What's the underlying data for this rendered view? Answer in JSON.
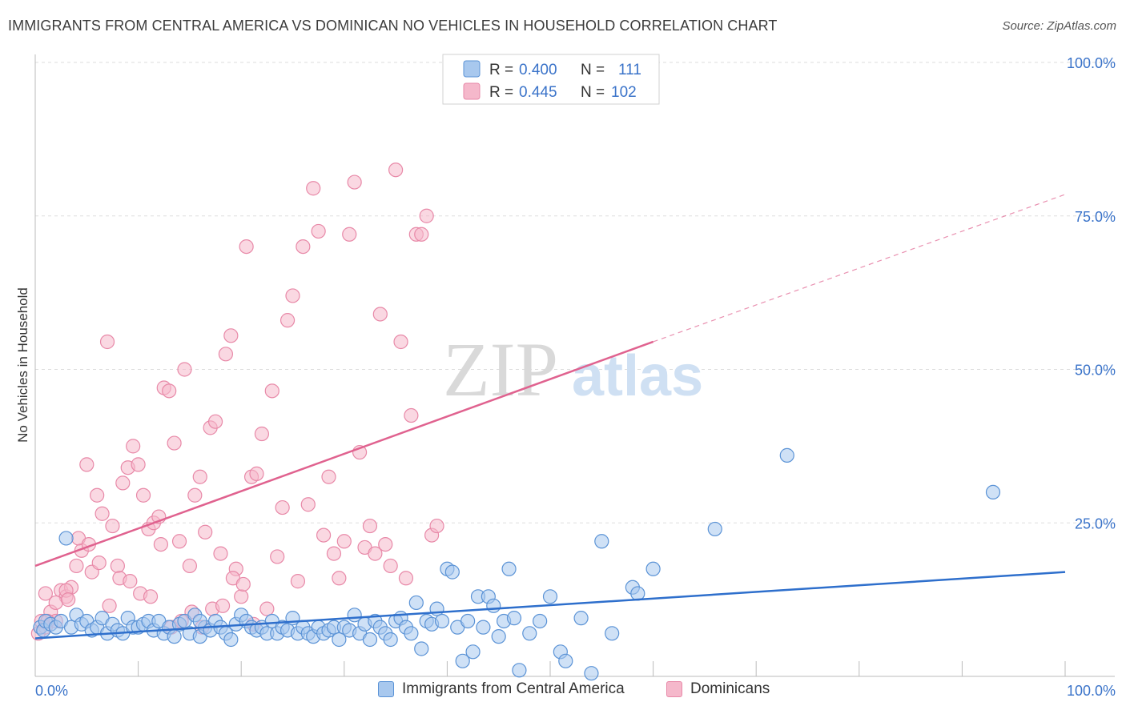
{
  "header": {
    "title": "IMMIGRANTS FROM CENTRAL AMERICA VS DOMINICAN NO VEHICLES IN HOUSEHOLD CORRELATION CHART",
    "source": "Source: ZipAtlas.com"
  },
  "watermark": {
    "zip": "ZIP",
    "atlas": "atlas"
  },
  "colors": {
    "blue_fill": "#a8c8ee",
    "blue_stroke": "#5b93d6",
    "blue_line": "#2e6fcc",
    "pink_fill": "#f5b8cb",
    "pink_stroke": "#e889a8",
    "pink_line": "#e0628f",
    "value_text": "#3a73c9",
    "grid": "#dddddd"
  },
  "legend_top": {
    "rows": [
      {
        "r_label": "R =",
        "r_value": "0.400",
        "n_label": "N =",
        "n_value": "111",
        "color": "blue"
      },
      {
        "r_label": "R =",
        "r_value": "0.445",
        "n_label": "N =",
        "n_value": "102",
        "color": "pink"
      }
    ]
  },
  "legend_bottom": {
    "items": [
      {
        "label": "Immigrants from Central America",
        "color": "blue"
      },
      {
        "label": "Dominicans",
        "color": "pink"
      }
    ]
  },
  "chart_data": {
    "type": "scatter",
    "title": "IMMIGRANTS FROM CENTRAL AMERICA VS DOMINICAN NO VEHICLES IN HOUSEHOLD CORRELATION CHART",
    "xlabel": "",
    "ylabel": "No Vehicles in Household",
    "xlim": [
      0,
      100
    ],
    "ylim": [
      0,
      100
    ],
    "x_tick_labels": [
      "0.0%",
      "100.0%"
    ],
    "y_tick_labels": [
      "25.0%",
      "50.0%",
      "75.0%",
      "100.0%"
    ],
    "y_ticks": [
      25,
      50,
      75,
      100
    ],
    "grid": true,
    "legend_position": "top-center",
    "series": [
      {
        "name": "Immigrants from Central America",
        "color": "blue",
        "trend": {
          "x": [
            0,
            100
          ],
          "y": [
            6.2,
            17.0
          ]
        },
        "points": [
          [
            0.5,
            8
          ],
          [
            0.8,
            7.5
          ],
          [
            1,
            9
          ],
          [
            1.5,
            8.5
          ],
          [
            2,
            8
          ],
          [
            2.5,
            9
          ],
          [
            3,
            22.5
          ],
          [
            3.5,
            8
          ],
          [
            4,
            10
          ],
          [
            4.5,
            8.5
          ],
          [
            5,
            9
          ],
          [
            5.5,
            7.5
          ],
          [
            6,
            8
          ],
          [
            6.5,
            9.5
          ],
          [
            7,
            7
          ],
          [
            7.5,
            8.5
          ],
          [
            8,
            7.5
          ],
          [
            8.5,
            7
          ],
          [
            9,
            9.5
          ],
          [
            9.5,
            8
          ],
          [
            10,
            8
          ],
          [
            10.5,
            8.5
          ],
          [
            11,
            9
          ],
          [
            11.5,
            7.5
          ],
          [
            12,
            9
          ],
          [
            12.5,
            7
          ],
          [
            13,
            8
          ],
          [
            13.5,
            6.5
          ],
          [
            14,
            8.5
          ],
          [
            14.5,
            9
          ],
          [
            15,
            7
          ],
          [
            15.5,
            10
          ],
          [
            16,
            6.5
          ],
          [
            16.5,
            8
          ],
          [
            17,
            7.5
          ],
          [
            17.5,
            9
          ],
          [
            18,
            8
          ],
          [
            18.5,
            7
          ],
          [
            19,
            6
          ],
          [
            19.5,
            8.5
          ],
          [
            20,
            10
          ],
          [
            20.5,
            9
          ],
          [
            21,
            8
          ],
          [
            21.5,
            7.5
          ],
          [
            22,
            8
          ],
          [
            22.5,
            7
          ],
          [
            23,
            9
          ],
          [
            23.5,
            7
          ],
          [
            24,
            8
          ],
          [
            24.5,
            7.5
          ],
          [
            25,
            9.5
          ],
          [
            25.5,
            7
          ],
          [
            26,
            8
          ],
          [
            26.5,
            7
          ],
          [
            27,
            6.5
          ],
          [
            27.5,
            8
          ],
          [
            28,
            7
          ],
          [
            28.5,
            7.5
          ],
          [
            29,
            8
          ],
          [
            29.5,
            6
          ],
          [
            30,
            8
          ],
          [
            30.5,
            7.5
          ],
          [
            31,
            10
          ],
          [
            31.5,
            7
          ],
          [
            32,
            8.5
          ],
          [
            32.5,
            6
          ],
          [
            33,
            9
          ],
          [
            33.5,
            8
          ],
          [
            34,
            7
          ],
          [
            34.5,
            6
          ],
          [
            35,
            9
          ],
          [
            35.5,
            9.5
          ],
          [
            36,
            8
          ],
          [
            36.5,
            7
          ],
          [
            37,
            12
          ],
          [
            37.5,
            4.5
          ],
          [
            38,
            9
          ],
          [
            38.5,
            8.5
          ],
          [
            39,
            11
          ],
          [
            39.5,
            9
          ],
          [
            40,
            17.5
          ],
          [
            40.5,
            17
          ],
          [
            41,
            8
          ],
          [
            41.5,
            2.5
          ],
          [
            42,
            9
          ],
          [
            42.5,
            4
          ],
          [
            43,
            13
          ],
          [
            43.5,
            8
          ],
          [
            44,
            13
          ],
          [
            44.5,
            11.5
          ],
          [
            45,
            6.5
          ],
          [
            45.5,
            9
          ],
          [
            46,
            17.5
          ],
          [
            46.5,
            9.5
          ],
          [
            47,
            1
          ],
          [
            48,
            7
          ],
          [
            49,
            9
          ],
          [
            50,
            13
          ],
          [
            51,
            4
          ],
          [
            51.5,
            2.5
          ],
          [
            53,
            9.5
          ],
          [
            54,
            0.5
          ],
          [
            55,
            22
          ],
          [
            56,
            7
          ],
          [
            58,
            14.5
          ],
          [
            58.5,
            13.5
          ],
          [
            60,
            17.5
          ],
          [
            66,
            24
          ],
          [
            73,
            36
          ],
          [
            93,
            30
          ],
          [
            16,
            9
          ]
        ]
      },
      {
        "name": "Dominicans",
        "color": "pink",
        "trend": {
          "x": [
            0,
            60
          ],
          "y": [
            18.0,
            54.5
          ]
        },
        "trend_dashed": {
          "x": [
            60,
            100
          ],
          "y": [
            54.5,
            78.5
          ]
        },
        "points": [
          [
            0.3,
            7
          ],
          [
            0.6,
            9
          ],
          [
            1,
            8
          ],
          [
            1.5,
            10.5
          ],
          [
            2,
            9
          ],
          [
            2.5,
            14
          ],
          [
            3,
            13
          ],
          [
            3.5,
            14.5
          ],
          [
            4,
            18
          ],
          [
            4.5,
            20.5
          ],
          [
            5,
            34.5
          ],
          [
            5.5,
            17
          ],
          [
            6,
            29.5
          ],
          [
            6.5,
            26.5
          ],
          [
            7,
            54.5
          ],
          [
            7.5,
            24.5
          ],
          [
            8,
            18
          ],
          [
            8.5,
            31.5
          ],
          [
            9,
            34
          ],
          [
            9.5,
            37.5
          ],
          [
            10,
            34.5
          ],
          [
            10.5,
            29.5
          ],
          [
            11,
            24
          ],
          [
            11.5,
            25
          ],
          [
            12,
            26
          ],
          [
            12.5,
            47
          ],
          [
            13,
            46.5
          ],
          [
            13.5,
            38
          ],
          [
            14,
            22
          ],
          [
            14.5,
            50
          ],
          [
            15,
            18
          ],
          [
            15.5,
            29.5
          ],
          [
            16,
            32.5
          ],
          [
            16.5,
            23.5
          ],
          [
            17,
            40.5
          ],
          [
            17.5,
            41.5
          ],
          [
            18,
            20
          ],
          [
            18.5,
            52.5
          ],
          [
            19,
            55.5
          ],
          [
            19.5,
            17.5
          ],
          [
            20,
            13
          ],
          [
            20.5,
            70
          ],
          [
            21,
            32.5
          ],
          [
            21.5,
            33
          ],
          [
            22,
            39.5
          ],
          [
            22.5,
            11
          ],
          [
            23,
            46.5
          ],
          [
            23.5,
            19.5
          ],
          [
            24,
            27.5
          ],
          [
            24.5,
            58
          ],
          [
            25,
            62
          ],
          [
            25.5,
            15.5
          ],
          [
            26,
            70
          ],
          [
            26.5,
            28
          ],
          [
            27,
            79.5
          ],
          [
            27.5,
            72.5
          ],
          [
            28,
            23
          ],
          [
            28.5,
            32.5
          ],
          [
            29,
            20
          ],
          [
            29.5,
            16
          ],
          [
            30,
            22
          ],
          [
            30.5,
            72
          ],
          [
            31,
            80.5
          ],
          [
            31.5,
            36.5
          ],
          [
            32,
            21
          ],
          [
            32.5,
            24.5
          ],
          [
            33,
            20
          ],
          [
            33.5,
            59
          ],
          [
            34,
            21.5
          ],
          [
            34.5,
            18
          ],
          [
            35,
            82.5
          ],
          [
            35.5,
            54.5
          ],
          [
            36,
            16
          ],
          [
            36.5,
            42.5
          ],
          [
            37,
            72
          ],
          [
            37.5,
            72
          ],
          [
            38,
            75
          ],
          [
            38.5,
            23
          ],
          [
            39,
            24.5
          ],
          [
            1,
            13.5
          ],
          [
            1.2,
            9
          ],
          [
            2,
            12
          ],
          [
            3,
            14
          ],
          [
            3.2,
            12.5
          ],
          [
            4.2,
            22.5
          ],
          [
            5.2,
            21.5
          ],
          [
            6.2,
            18.5
          ],
          [
            7.2,
            11.5
          ],
          [
            8.2,
            16
          ],
          [
            9.2,
            15.5
          ],
          [
            10.2,
            13.5
          ],
          [
            11.2,
            13
          ],
          [
            12.2,
            21.5
          ],
          [
            13.2,
            8
          ],
          [
            14.2,
            9
          ],
          [
            15.2,
            10.5
          ],
          [
            16.2,
            8
          ],
          [
            17.2,
            11
          ],
          [
            18.2,
            11.5
          ],
          [
            19.2,
            16
          ],
          [
            20.2,
            15
          ],
          [
            21.2,
            8.5
          ]
        ]
      }
    ]
  }
}
